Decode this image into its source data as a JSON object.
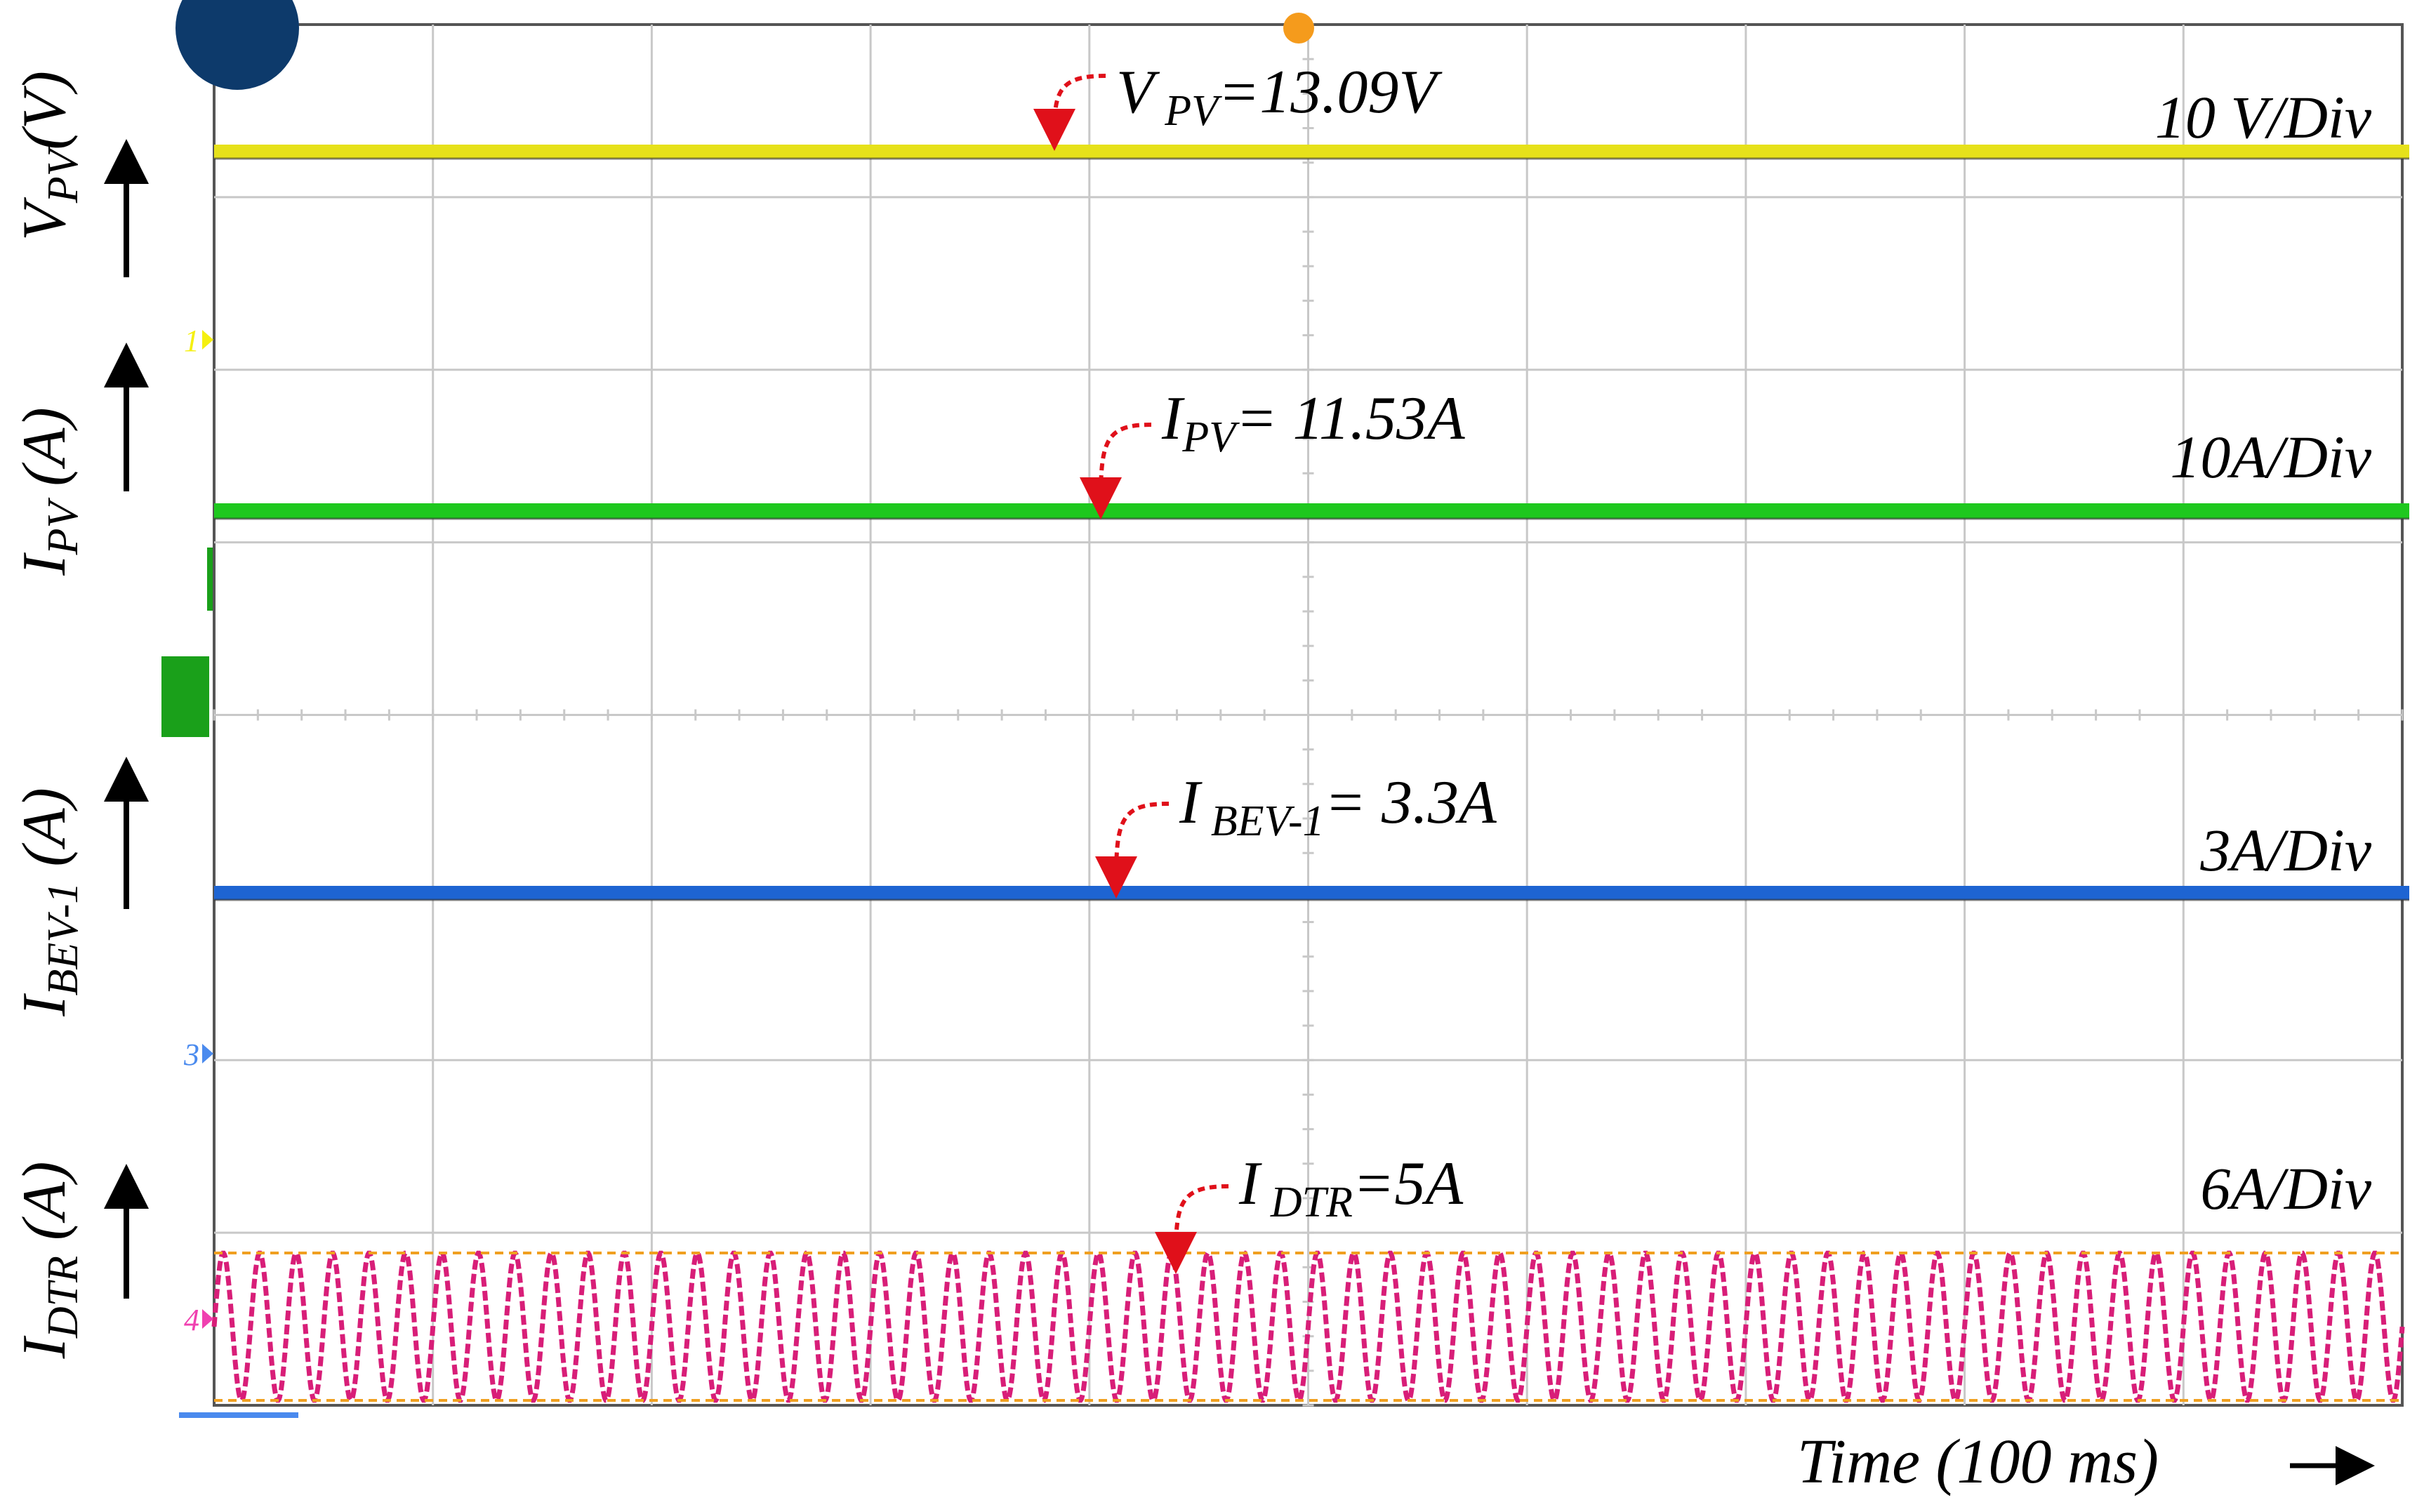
{
  "chart_data": {
    "type": "line",
    "time_axis_label": "Time (100 ms)",
    "colors": {
      "grid": "#c8c8c8",
      "frame": "#555555",
      "annotation": "#e0101a",
      "ch1": "#e6e11a",
      "ch2": "#1ec81e",
      "ch3": "#1e64d2",
      "ch4": "#d81e78",
      "ch4_envelope": "#f0a020",
      "ch1_marker": "#f5f010",
      "ch2_marker": "#1aa01a",
      "ch3_marker": "#4a8aee",
      "ch4_marker": "#f040b0",
      "top_badge": "#0d3a6b",
      "trigger": "#f59b1c",
      "label": "#000000"
    },
    "channels": [
      {
        "id": "ch1",
        "axis_label_main": "V",
        "axis_label_sub": "PV",
        "axis_label_rest": "(V)",
        "scale": "10 V/Div",
        "annotation_main": "V",
        "annotation_sub": " PV",
        "annotation_rest": "=13.09V",
        "value": 13.09,
        "unit": "V",
        "waveform": "dc",
        "marker": "1"
      },
      {
        "id": "ch2",
        "axis_label_main": "I",
        "axis_label_sub": "PV",
        "axis_label_rest": " (A)",
        "scale": "10A/Div",
        "annotation_main": "I",
        "annotation_sub": "PV",
        "annotation_rest": "= 11.53A",
        "value": 11.53,
        "unit": "A",
        "waveform": "dc",
        "marker": "2"
      },
      {
        "id": "ch3",
        "axis_label_main": "I",
        "axis_label_sub": "BEV-1",
        "axis_label_rest": " (A)",
        "scale": "3A/Div",
        "annotation_main": "I",
        "annotation_sub": " BEV-1",
        "annotation_rest": "= 3.3A",
        "value": 3.3,
        "unit": "A",
        "waveform": "dc",
        "marker": "3"
      },
      {
        "id": "ch4",
        "axis_label_main": "I",
        "axis_label_sub": "DTR",
        "axis_label_rest": " (A)",
        "scale": "6A/Div",
        "annotation_main": "I",
        "annotation_sub": " DTR",
        "annotation_rest": "=5A",
        "value": 5,
        "unit": "A",
        "waveform": "ac",
        "marker": "4"
      }
    ]
  }
}
